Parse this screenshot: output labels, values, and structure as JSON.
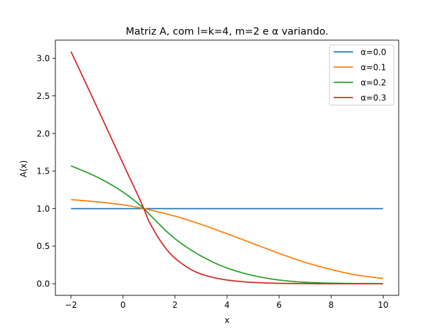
{
  "chart_data": {
    "type": "line",
    "title": "Matriz A, com l=k=4, m=2 e α variando.",
    "xlabel": "x",
    "ylabel": "A(x)",
    "xlim": [
      -2.6,
      10.6
    ],
    "ylim": [
      -0.154,
      3.242
    ],
    "xticks": [
      -2,
      0,
      2,
      4,
      6,
      8,
      10
    ],
    "xtick_labels": [
      "−2",
      "0",
      "2",
      "4",
      "6",
      "8",
      "10"
    ],
    "yticks": [
      0.0,
      0.5,
      1.0,
      1.5,
      2.0,
      2.5,
      3.0
    ],
    "ytick_labels": [
      "0.0",
      "0.5",
      "1.0",
      "1.5",
      "2.0",
      "2.5",
      "3.0"
    ],
    "grid": false,
    "legend_position": "top-right",
    "x": [
      -2,
      -1,
      0,
      0.8,
      1,
      2,
      3,
      4,
      5,
      6,
      7,
      8,
      9,
      10
    ],
    "series": [
      {
        "name": "α=0.0",
        "color": "#1f77b4",
        "values": [
          1,
          1,
          1,
          1,
          1,
          1,
          1,
          1,
          1,
          1,
          1,
          1,
          1,
          1
        ]
      },
      {
        "name": "α=0.1",
        "color": "#ff7f0e",
        "values": [
          1.12,
          1.09,
          1.05,
          1.0,
          0.985,
          0.9,
          0.79,
          0.665,
          0.535,
          0.405,
          0.285,
          0.19,
          0.115,
          0.07
        ]
      },
      {
        "name": "α=0.2",
        "color": "#2ca02c",
        "values": [
          1.57,
          1.42,
          1.22,
          1.0,
          0.93,
          0.6,
          0.37,
          0.21,
          0.11,
          0.05,
          0.02,
          0.008,
          0.003,
          0.001
        ]
      },
      {
        "name": "α=0.3",
        "color": "#d62728",
        "values": [
          3.09,
          2.35,
          1.6,
          1.0,
          0.83,
          0.34,
          0.13,
          0.05,
          0.018,
          0.006,
          0.002,
          0.0,
          0.0,
          0.0
        ]
      }
    ]
  }
}
